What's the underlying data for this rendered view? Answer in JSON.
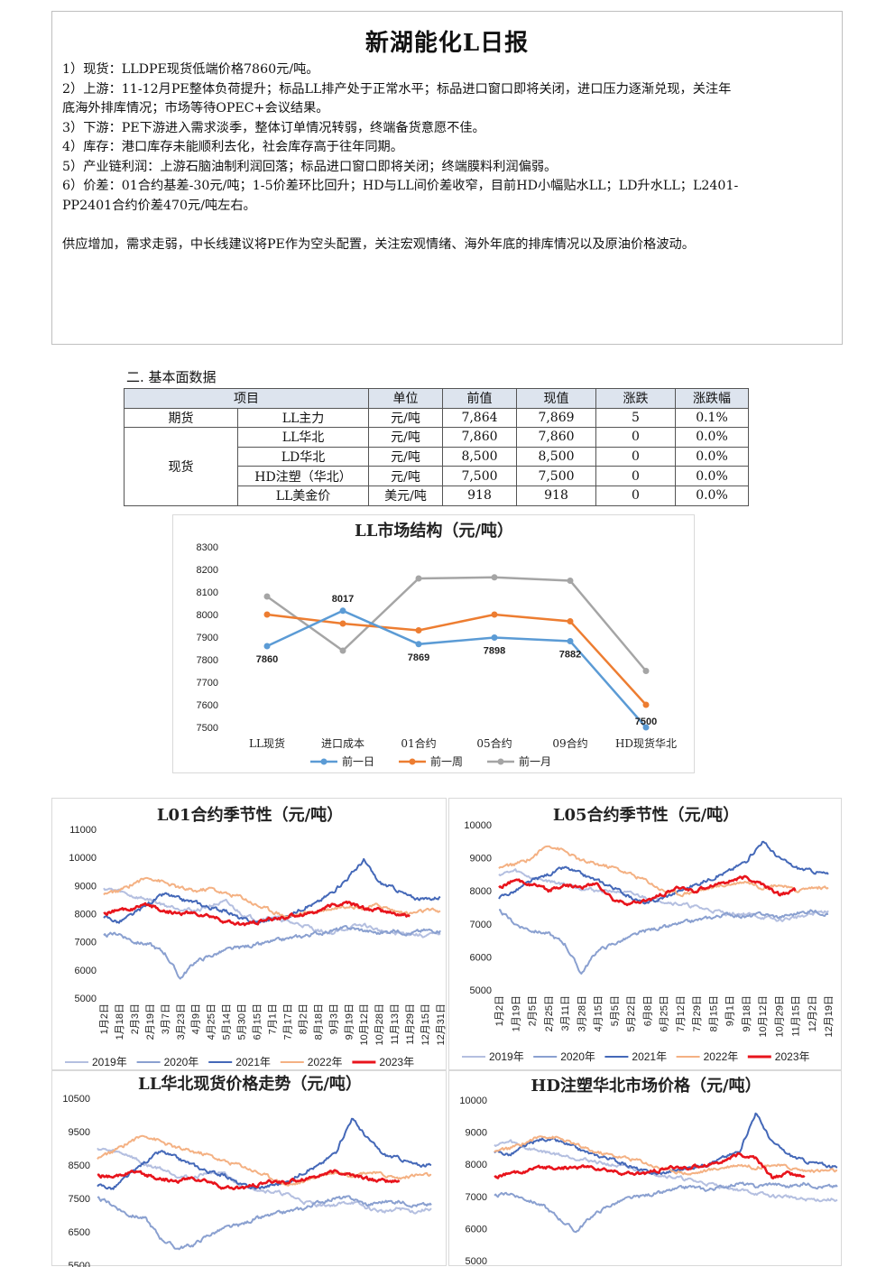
{
  "report": {
    "title": "新湖能化L日报",
    "lines": [
      "1）现货：LLDPE现货低端价格7860元/吨。",
      "2）上游：11-12月PE整体负荷提升；标品LL排产处于正常水平；标品进口窗口即将关闭，进口压力逐渐兑现，关注年",
      "底海外排库情况；市场等待OPEC+会议结果。",
      "3）下游：PE下游进入需求淡季，整体订单情况转弱，终端备货意愿不佳。",
      "4）库存：港口库存未能顺利去化，社会库存高于往年同期。",
      "5）产业链利润：上游石脑油制利润回落；标品进口窗口即将关闭；终端膜料利润偏弱。",
      "6）价差：01合约基差-30元/吨；1-5价差环比回升；HD与LL间价差收窄，目前HD小幅贴水LL；LD升水LL；L2401-",
      "PP2401合约价差470元/吨左右。",
      "",
      "供应增加，需求走弱，中长线建议将PE作为空头配置，关注宏观情绪、海外年底的排库情况以及原油价格波动。"
    ]
  },
  "section_title": "二. 基本面数据",
  "table": {
    "headers": [
      "项目",
      "单位",
      "前值",
      "现值",
      "涨跌",
      "涨跌幅"
    ],
    "group_futures": "期货",
    "group_spot": "现货",
    "rows": [
      {
        "item": "LL主力",
        "unit": "元/吨",
        "prev": "7,864",
        "curr": "7,869",
        "chg": "5",
        "pct": "0.1%"
      },
      {
        "item": "LL华北",
        "unit": "元/吨",
        "prev": "7,860",
        "curr": "7,860",
        "chg": "0",
        "pct": "0.0%"
      },
      {
        "item": "LD华北",
        "unit": "元/吨",
        "prev": "8,500",
        "curr": "8,500",
        "chg": "0",
        "pct": "0.0%"
      },
      {
        "item": "HD注塑（华北）",
        "unit": "元/吨",
        "prev": "7,500",
        "curr": "7,500",
        "chg": "0",
        "pct": "0.0%"
      },
      {
        "item": "LL美金价",
        "unit": "美元/吨",
        "prev": "918",
        "curr": "918",
        "chg": "0",
        "pct": "0.0%"
      }
    ]
  },
  "chart_data": [
    {
      "type": "line",
      "title": "LL市场结构（元/吨）",
      "categories": [
        "LL现货",
        "进口成本",
        "01合约",
        "05合约",
        "09合约",
        "HD现货华北"
      ],
      "ylim": [
        7500,
        8300
      ],
      "yticks": [
        7500,
        7600,
        7700,
        7800,
        7900,
        8000,
        8100,
        8200,
        8300
      ],
      "legend_position": "bottom",
      "series": [
        {
          "name": "前一日",
          "color": "#5b9bd5",
          "values": [
            7860,
            8017,
            7869,
            7898,
            7882,
            7500
          ],
          "labels": [
            "7860",
            "8017",
            "7869",
            "7898",
            "7882",
            "7500"
          ]
        },
        {
          "name": "前一周",
          "color": "#ed7d31",
          "values": [
            8000,
            7960,
            7930,
            8000,
            7970,
            7600
          ]
        },
        {
          "name": "前一月",
          "color": "#a5a5a5",
          "values": [
            8080,
            7840,
            8160,
            8165,
            8150,
            7750
          ]
        }
      ]
    },
    {
      "type": "line",
      "title": "L01合约季节性（元/吨）",
      "ylim": [
        5000,
        11000
      ],
      "yticks": [
        5000,
        6000,
        7000,
        8000,
        9000,
        10000,
        11000
      ],
      "xticks": [
        "1月2日",
        "1月18日",
        "2月3日",
        "2月19日",
        "3月7日",
        "3月23日",
        "4月9日",
        "4月25日",
        "5月14日",
        "5月30日",
        "6月15日",
        "7月1日",
        "7月17日",
        "8月2日",
        "8月18日",
        "9月3日",
        "9月19日",
        "10月12日",
        "10月28日",
        "11月13日",
        "11月29日",
        "12月15日",
        "12月31日"
      ],
      "legend_position": "bottom",
      "series": [
        {
          "name": "2019年",
          "color": "#b4bfe0",
          "values": [
            8900,
            8800,
            8600,
            8500,
            8300,
            8200,
            8100,
            8300,
            8400,
            8000,
            7800,
            7900,
            7700,
            7600,
            7400,
            7300,
            7500,
            7600,
            7400,
            7300,
            7300,
            7200,
            7300
          ]
        },
        {
          "name": "2020年",
          "color": "#8aa0d0",
          "values": [
            7200,
            7300,
            7000,
            6900,
            6600,
            5700,
            6300,
            6500,
            6700,
            6800,
            6900,
            7000,
            7100,
            7200,
            7300,
            7400,
            7500,
            7400,
            7300,
            7400,
            7300,
            7400,
            7400
          ]
        },
        {
          "name": "2021年",
          "color": "#4468b8",
          "values": [
            7900,
            7700,
            8000,
            8400,
            8700,
            8500,
            8400,
            8200,
            8100,
            7800,
            7700,
            7800,
            7900,
            8200,
            8400,
            8800,
            9300,
            9900,
            9100,
            8900,
            8600,
            8500,
            8600
          ]
        },
        {
          "name": "2022年",
          "color": "#f4b183",
          "values": [
            8700,
            8800,
            9100,
            9300,
            9100,
            8900,
            8800,
            8900,
            8700,
            8600,
            8300,
            8100,
            7900,
            8000,
            8100,
            8200,
            8300,
            8200,
            8300,
            8100,
            8000,
            8100,
            8100
          ]
        },
        {
          "name": "2023年",
          "color": "#e8141c",
          "values": [
            8000,
            8100,
            8200,
            8300,
            8100,
            8000,
            8000,
            7900,
            7700,
            7600,
            7700,
            7800,
            7900,
            8000,
            8100,
            8300,
            8400,
            8200,
            8100,
            8000,
            7900,
            null,
            null
          ]
        }
      ]
    },
    {
      "type": "line",
      "title": "L05合约季节性（元/吨）",
      "ylim": [
        5000,
        10000
      ],
      "yticks": [
        5000,
        6000,
        7000,
        8000,
        9000,
        10000
      ],
      "xticks": [
        "1月2日",
        "1月19日",
        "2月5日",
        "2月25日",
        "3月11日",
        "3月28日",
        "4月15日",
        "5月5日",
        "5月22日",
        "6月8日",
        "6月25日",
        "7月12日",
        "7月29日",
        "8月15日",
        "9月1日",
        "9月18日",
        "10月12日",
        "10月29日",
        "11月15日",
        "12月2日",
        "12月19日"
      ],
      "legend_position": "bottom",
      "series": [
        {
          "name": "2019年",
          "color": "#b4bfe0",
          "values": [
            8500,
            8600,
            8400,
            8300,
            8200,
            8100,
            8000,
            8000,
            7900,
            7800,
            7700,
            7600,
            7500,
            7400,
            7300,
            7300,
            7200,
            7100,
            7200,
            7300,
            7400
          ]
        },
        {
          "name": "2020年",
          "color": "#8aa0d0",
          "values": [
            7400,
            7000,
            6800,
            6700,
            6400,
            5500,
            6200,
            6400,
            6600,
            6800,
            6900,
            7000,
            7100,
            7200,
            7300,
            7200,
            7300,
            7200,
            7300,
            7400,
            7300
          ]
        },
        {
          "name": "2021年",
          "color": "#4468b8",
          "values": [
            7800,
            8000,
            8300,
            8500,
            8700,
            8500,
            8300,
            8100,
            7800,
            7600,
            7800,
            8000,
            8200,
            8400,
            8600,
            8900,
            9500,
            9000,
            8700,
            8600,
            8500
          ]
        },
        {
          "name": "2022年",
          "color": "#f4b183",
          "values": [
            8700,
            8800,
            9000,
            9400,
            9200,
            8900,
            8800,
            8700,
            8500,
            8300,
            8000,
            7900,
            8000,
            8100,
            8200,
            8300,
            8100,
            8200,
            8000,
            8100,
            8100
          ]
        },
        {
          "name": "2023年",
          "color": "#e8141c",
          "values": [
            8100,
            8300,
            8200,
            8000,
            8200,
            8100,
            8200,
            7700,
            7600,
            7700,
            7900,
            8100,
            8000,
            8200,
            8300,
            8400,
            8200,
            7900,
            8000,
            null,
            null
          ]
        }
      ]
    },
    {
      "type": "line",
      "title": "LL华北现货价格走势（元/吨）",
      "ylim": [
        5500,
        10500
      ],
      "yticks": [
        5500,
        6500,
        7500,
        8500,
        9500,
        10500
      ],
      "legend_position": "none",
      "series": [
        {
          "name": "",
          "color": "#b4bfe0",
          "values": [
            9000,
            8900,
            8800,
            8500,
            8400,
            8200,
            8100,
            8300,
            8200,
            7900,
            7800,
            7700,
            7600,
            7400,
            7300,
            7300,
            7400,
            7200,
            7100,
            7200,
            7100,
            7200
          ]
        },
        {
          "name": "",
          "color": "#8aa0d0",
          "values": [
            7500,
            7300,
            7000,
            6900,
            6300,
            6000,
            6100,
            6400,
            6600,
            6700,
            6900,
            7000,
            7100,
            7200,
            7400,
            7500,
            7500,
            7300,
            7400,
            7400,
            7300,
            7300
          ]
        },
        {
          "name": "",
          "color": "#4468b8",
          "values": [
            7900,
            7800,
            8200,
            8600,
            8900,
            8700,
            8500,
            8300,
            8200,
            7900,
            7800,
            7900,
            8000,
            8300,
            8500,
            8900,
            9900,
            9300,
            8800,
            8700,
            8500,
            8500
          ]
        },
        {
          "name": "",
          "color": "#f4b183",
          "values": [
            8700,
            8900,
            9200,
            9400,
            9200,
            9000,
            8900,
            8800,
            8600,
            8500,
            8300,
            8100,
            7900,
            8000,
            8200,
            8300,
            8200,
            8300,
            8200,
            8100,
            8200,
            8200
          ]
        },
        {
          "name": "",
          "color": "#e8141c",
          "values": [
            8200,
            8100,
            8300,
            8200,
            8100,
            8000,
            8100,
            8000,
            7800,
            7800,
            7900,
            8000,
            8000,
            8100,
            8200,
            8300,
            8200,
            8100,
            8000,
            8000,
            null,
            null
          ]
        }
      ]
    },
    {
      "type": "line",
      "title": "HD注塑华北市场价格（元/吨）",
      "ylim": [
        5000,
        10000
      ],
      "yticks": [
        5000,
        6000,
        7000,
        8000,
        9000,
        10000
      ],
      "legend_position": "none",
      "series": [
        {
          "name": "",
          "color": "#b4bfe0",
          "values": [
            8600,
            8700,
            8500,
            8400,
            8300,
            8200,
            8100,
            8000,
            7900,
            7800,
            7700,
            7600,
            7500,
            7400,
            7300,
            7200,
            7100,
            7000,
            7000,
            6900,
            6900,
            6900
          ]
        },
        {
          "name": "",
          "color": "#8aa0d0",
          "values": [
            7000,
            7100,
            6900,
            6700,
            6300,
            5900,
            6400,
            6700,
            6900,
            7000,
            7100,
            7200,
            7300,
            7200,
            7300,
            7400,
            7300,
            7400,
            7300,
            7400,
            7300,
            7300
          ]
        },
        {
          "name": "",
          "color": "#4468b8",
          "values": [
            8400,
            8300,
            8600,
            8800,
            8700,
            8500,
            8300,
            8200,
            8000,
            7800,
            7700,
            7800,
            7900,
            8000,
            8200,
            8400,
            9600,
            8700,
            8300,
            8100,
            8000,
            7900
          ]
        },
        {
          "name": "",
          "color": "#f4b183",
          "values": [
            8400,
            8500,
            8700,
            8900,
            8800,
            8600,
            8400,
            8300,
            8200,
            8100,
            7900,
            7800,
            7700,
            7800,
            7900,
            8000,
            7900,
            8000,
            7900,
            7800,
            7800,
            7800
          ]
        },
        {
          "name": "",
          "color": "#e8141c",
          "values": [
            7600,
            7700,
            7800,
            7900,
            7900,
            7900,
            7900,
            7800,
            7700,
            7700,
            7800,
            7900,
            7900,
            8000,
            8100,
            8300,
            8200,
            7600,
            7700,
            7600,
            null,
            null
          ]
        }
      ]
    }
  ]
}
